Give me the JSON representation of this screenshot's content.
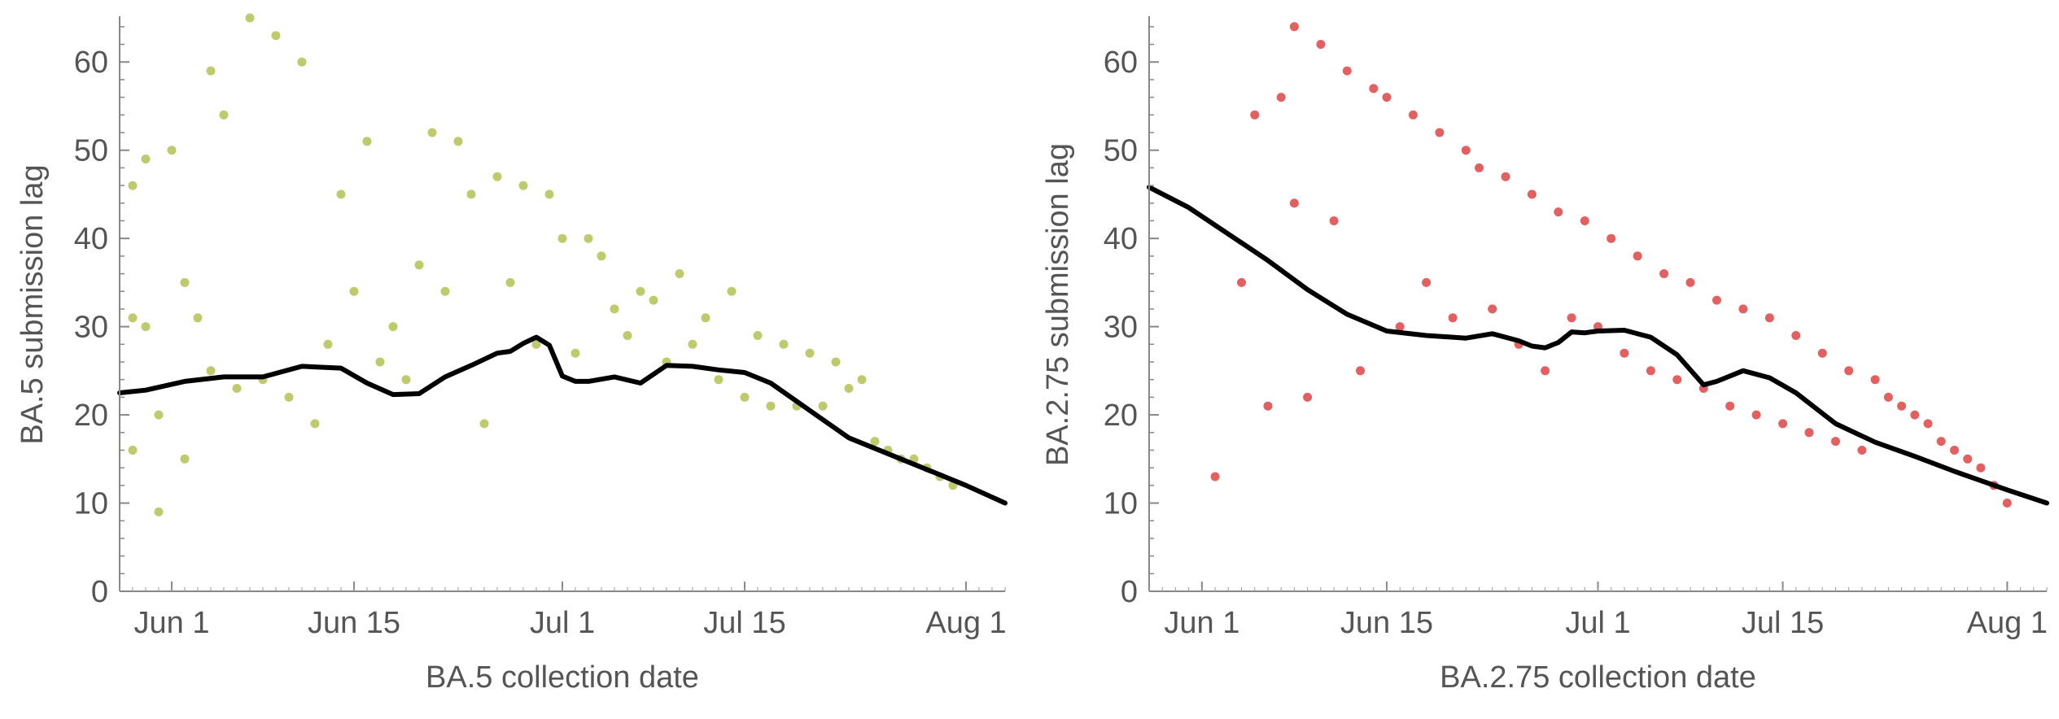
{
  "chart_data": [
    {
      "type": "scatter",
      "title": "",
      "xlabel": "BA.5 collection date",
      "ylabel": "BA.5 submission lag",
      "x_tick_labels": [
        "Jun 1",
        "Jun 15",
        "Jul 1",
        "Jul 15",
        "Aug 1"
      ],
      "x_tick_dates": [
        "2022-06-01",
        "2022-06-15",
        "2022-07-01",
        "2022-07-15",
        "2022-08-01"
      ],
      "xlim": [
        "2022-05-28",
        "2022-08-04"
      ],
      "y_ticks": [
        0,
        10,
        20,
        30,
        40,
        50,
        60
      ],
      "ylim": [
        0,
        65
      ],
      "grid": false,
      "point_color": "#a8b83a",
      "line_color": "#000000",
      "series": [
        {
          "kind": "points",
          "x": [
            "2022-05-29",
            "2022-05-29",
            "2022-05-29",
            "2022-05-30",
            "2022-05-30",
            "2022-05-31",
            "2022-05-31",
            "2022-06-01",
            "2022-06-02",
            "2022-06-02",
            "2022-06-03",
            "2022-06-04",
            "2022-06-04",
            "2022-06-05",
            "2022-06-06",
            "2022-06-07",
            "2022-06-08",
            "2022-06-09",
            "2022-06-10",
            "2022-06-11",
            "2022-06-12",
            "2022-06-13",
            "2022-06-14",
            "2022-06-15",
            "2022-06-16",
            "2022-06-17",
            "2022-06-18",
            "2022-06-19",
            "2022-06-20",
            "2022-06-21",
            "2022-06-22",
            "2022-06-23",
            "2022-06-24",
            "2022-06-25",
            "2022-06-26",
            "2022-06-27",
            "2022-06-28",
            "2022-06-29",
            "2022-06-30",
            "2022-07-01",
            "2022-07-02",
            "2022-07-03",
            "2022-07-04",
            "2022-07-05",
            "2022-07-06",
            "2022-07-07",
            "2022-07-08",
            "2022-07-09",
            "2022-07-10",
            "2022-07-11",
            "2022-07-12",
            "2022-07-13",
            "2022-07-14",
            "2022-07-15",
            "2022-07-16",
            "2022-07-17",
            "2022-07-18",
            "2022-07-19",
            "2022-07-20",
            "2022-07-21",
            "2022-07-22",
            "2022-07-23",
            "2022-07-24",
            "2022-07-25",
            "2022-07-26",
            "2022-07-27",
            "2022-07-28",
            "2022-07-29",
            "2022-07-30",
            "2022-07-31"
          ],
          "y": [
            46,
            31,
            16,
            49,
            30,
            20,
            9,
            50,
            35,
            15,
            31,
            25,
            59,
            54,
            23,
            65,
            24,
            63,
            22,
            60,
            19,
            28,
            45,
            34,
            51,
            26,
            30,
            24,
            37,
            52,
            34,
            51,
            45,
            19,
            47,
            35,
            46,
            28,
            45,
            40,
            27,
            40,
            38,
            32,
            29,
            34,
            33,
            26,
            36,
            28,
            31,
            24,
            34,
            22,
            29,
            21,
            28,
            21,
            27,
            21,
            26,
            23,
            24,
            17,
            16,
            15,
            15,
            14,
            13,
            12
          ]
        },
        {
          "kind": "smoothed line",
          "x": [
            "2022-05-28",
            "2022-05-30",
            "2022-06-02",
            "2022-06-05",
            "2022-06-08",
            "2022-06-11",
            "2022-06-14",
            "2022-06-16",
            "2022-06-18",
            "2022-06-20",
            "2022-06-22",
            "2022-06-24",
            "2022-06-26",
            "2022-06-27",
            "2022-06-28",
            "2022-06-29",
            "2022-06-30",
            "2022-07-01",
            "2022-07-02",
            "2022-07-03",
            "2022-07-05",
            "2022-07-07",
            "2022-07-09",
            "2022-07-11",
            "2022-07-13",
            "2022-07-15",
            "2022-07-17",
            "2022-07-20",
            "2022-07-23",
            "2022-07-26",
            "2022-07-29",
            "2022-08-01",
            "2022-08-04"
          ],
          "y": [
            22.5,
            22.8,
            23.8,
            24.3,
            24.3,
            25.5,
            25.3,
            23.6,
            22.3,
            22.4,
            24.3,
            25.6,
            27.0,
            27.2,
            28.1,
            28.8,
            27.9,
            24.4,
            23.8,
            23.8,
            24.3,
            23.6,
            25.6,
            25.5,
            25.1,
            24.8,
            23.6,
            20.5,
            17.4,
            15.6,
            13.8,
            12.0,
            10.0
          ]
        }
      ]
    },
    {
      "type": "scatter",
      "title": "",
      "xlabel": "BA.2.75 collection date",
      "ylabel": "BA.2.75 submission lag",
      "x_tick_labels": [
        "Jun 1",
        "Jun 15",
        "Jul 1",
        "Jul 15",
        "Aug 1"
      ],
      "x_tick_dates": [
        "2022-06-01",
        "2022-06-15",
        "2022-07-01",
        "2022-07-15",
        "2022-08-01"
      ],
      "xlim": [
        "2022-05-28",
        "2022-08-04"
      ],
      "y_ticks": [
        0,
        10,
        20,
        30,
        40,
        50,
        60
      ],
      "ylim": [
        0,
        65
      ],
      "grid": false,
      "point_color": "#d92b2b",
      "line_color": "#000000",
      "series": [
        {
          "kind": "points",
          "x": [
            "2022-06-02",
            "2022-06-04",
            "2022-06-05",
            "2022-06-06",
            "2022-06-07",
            "2022-06-08",
            "2022-06-08",
            "2022-06-09",
            "2022-06-10",
            "2022-06-11",
            "2022-06-12",
            "2022-06-13",
            "2022-06-14",
            "2022-06-15",
            "2022-06-16",
            "2022-06-17",
            "2022-06-18",
            "2022-06-19",
            "2022-06-20",
            "2022-06-21",
            "2022-06-22",
            "2022-06-23",
            "2022-06-24",
            "2022-06-25",
            "2022-06-26",
            "2022-06-27",
            "2022-06-28",
            "2022-06-29",
            "2022-06-30",
            "2022-07-01",
            "2022-07-02",
            "2022-07-03",
            "2022-07-04",
            "2022-07-05",
            "2022-07-06",
            "2022-07-07",
            "2022-07-08",
            "2022-07-09",
            "2022-07-10",
            "2022-07-11",
            "2022-07-12",
            "2022-07-13",
            "2022-07-14",
            "2022-07-15",
            "2022-07-16",
            "2022-07-17",
            "2022-07-18",
            "2022-07-19",
            "2022-07-20",
            "2022-07-21",
            "2022-07-22",
            "2022-07-23",
            "2022-07-24",
            "2022-07-25",
            "2022-07-26",
            "2022-07-27",
            "2022-07-28",
            "2022-07-29",
            "2022-07-30",
            "2022-07-31",
            "2022-08-01"
          ],
          "y": [
            13,
            35,
            54,
            21,
            56,
            64,
            44,
            22,
            62,
            42,
            59,
            25,
            57,
            56,
            30,
            54,
            35,
            52,
            31,
            50,
            48,
            32,
            47,
            28,
            45,
            25,
            43,
            31,
            42,
            30,
            40,
            27,
            38,
            25,
            36,
            24,
            35,
            23,
            33,
            21,
            32,
            20,
            31,
            19,
            29,
            18,
            27,
            17,
            25,
            16,
            24,
            22,
            21,
            20,
            19,
            17,
            16,
            15,
            14,
            12,
            10
          ]
        },
        {
          "kind": "smoothed line",
          "x": [
            "2022-05-28",
            "2022-05-31",
            "2022-06-03",
            "2022-06-06",
            "2022-06-09",
            "2022-06-12",
            "2022-06-15",
            "2022-06-18",
            "2022-06-21",
            "2022-06-23",
            "2022-06-25",
            "2022-06-26",
            "2022-06-27",
            "2022-06-28",
            "2022-06-29",
            "2022-06-30",
            "2022-07-01",
            "2022-07-03",
            "2022-07-05",
            "2022-07-07",
            "2022-07-09",
            "2022-07-10",
            "2022-07-12",
            "2022-07-14",
            "2022-07-16",
            "2022-07-19",
            "2022-07-22",
            "2022-07-25",
            "2022-07-28",
            "2022-08-01",
            "2022-08-04"
          ],
          "y": [
            45.8,
            43.5,
            40.5,
            37.5,
            34.2,
            31.4,
            29.5,
            29.0,
            28.7,
            29.2,
            28.4,
            27.8,
            27.6,
            28.2,
            29.4,
            29.3,
            29.5,
            29.6,
            28.8,
            26.8,
            23.4,
            23.8,
            25.0,
            24.2,
            22.5,
            19.0,
            16.9,
            15.3,
            13.6,
            11.5,
            10.0
          ]
        }
      ]
    }
  ]
}
